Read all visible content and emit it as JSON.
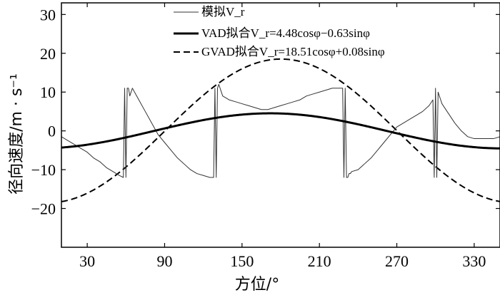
{
  "chart_data": {
    "type": "line",
    "xlabel": "方位/°",
    "ylabel": "径向速度/m · s⁻¹",
    "xlim": [
      10,
      350
    ],
    "ylim": [
      -30,
      33
    ],
    "xticks": [
      30,
      90,
      150,
      210,
      270,
      330
    ],
    "yticks": [
      30,
      20,
      10,
      0,
      -10,
      -20
    ],
    "xtick_labels": [
      "30",
      "90",
      "150",
      "210",
      "270",
      "330"
    ],
    "ytick_labels": [
      "30",
      "20",
      "10",
      "0",
      "−10",
      "−20"
    ],
    "grid": false,
    "legend_position": "top",
    "series": [
      {
        "name": "模拟Vr",
        "legend_label": "模拟V_r",
        "style": "thin-solid",
        "color": "#333333",
        "x": [
          10,
          15,
          20,
          25,
          30,
          35,
          40,
          45,
          50,
          55,
          58,
          59,
          60,
          61,
          62,
          63,
          64,
          65,
          70,
          75,
          80,
          85,
          90,
          95,
          100,
          105,
          110,
          115,
          120,
          125,
          128,
          129,
          130,
          131,
          132,
          133,
          134,
          135,
          140,
          145,
          150,
          155,
          160,
          165,
          170,
          175,
          180,
          185,
          190,
          195,
          200,
          205,
          210,
          215,
          220,
          225,
          228,
          229,
          230,
          231,
          232,
          233,
          234,
          235,
          240,
          245,
          250,
          255,
          260,
          265,
          270,
          275,
          280,
          285,
          290,
          295,
          298,
          299,
          300,
          301,
          302,
          303,
          304,
          305,
          310,
          315,
          320,
          325,
          330,
          335,
          340,
          345,
          350
        ],
        "y": [
          -1.5,
          -2.5,
          -3.5,
          -4.5,
          -5.5,
          -7,
          -8,
          -9.5,
          -10.5,
          -11.5,
          -12,
          11,
          -12,
          11,
          11,
          9,
          10,
          11,
          8,
          5,
          2,
          -1,
          -3,
          -5,
          -7,
          -8.5,
          -10,
          -11,
          -11.5,
          -12,
          -12,
          11,
          -12,
          11,
          12,
          11,
          10,
          9,
          8,
          7.5,
          7,
          6.5,
          6,
          5.5,
          5.5,
          6,
          6.5,
          7,
          7.5,
          8,
          9,
          9.5,
          10,
          10.5,
          11,
          11,
          11,
          -12,
          11,
          -12,
          -12,
          -11,
          -11,
          -10.5,
          -10,
          -8.5,
          -7,
          -5,
          -3,
          -1,
          1,
          2,
          3,
          4,
          5,
          6.5,
          8,
          -12,
          11,
          -12,
          10,
          9,
          8,
          7,
          4.5,
          2,
          0,
          -1.5,
          -2,
          -2,
          -2,
          -2,
          -1.5
        ]
      },
      {
        "name": "VAD拟合Vr",
        "legend_label": "VAD拟合V_r=4.48cosφ−0.63sinφ",
        "style": "thick-solid",
        "color": "#000000",
        "amp_cos": 4.48,
        "amp_sin": -0.63,
        "x_center": 180
      },
      {
        "name": "GVAD拟合Vr",
        "legend_label": "GVAD拟合V_r=18.51cosφ+0.08sinφ",
        "style": "dashed",
        "color": "#000000",
        "amp_cos": 18.51,
        "amp_sin": 0.08,
        "x_center": 180
      }
    ]
  }
}
